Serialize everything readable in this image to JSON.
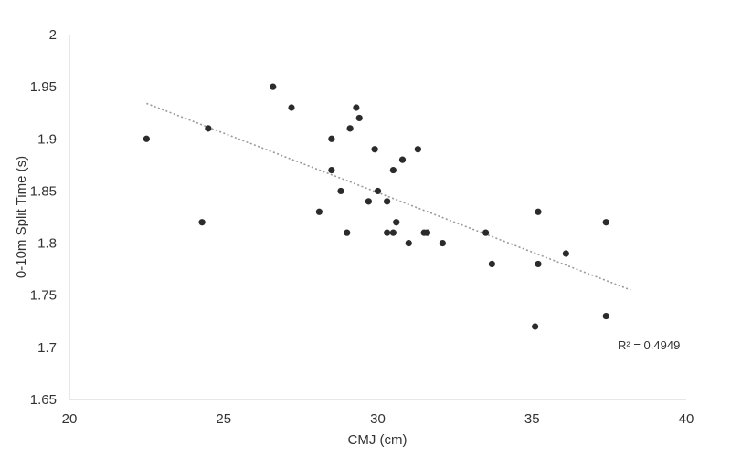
{
  "chart_data": {
    "type": "scatter",
    "title": "",
    "xlabel": "CMJ (cm)",
    "ylabel": "0-10m Split Time (s)",
    "xlim": [
      20,
      40
    ],
    "ylim": [
      1.65,
      2
    ],
    "xticks": [
      20,
      25,
      30,
      35,
      40
    ],
    "yticks": [
      1.65,
      1.7,
      1.75,
      1.8,
      1.85,
      1.9,
      1.95,
      2
    ],
    "xtick_labels": [
      "20",
      "25",
      "30",
      "35",
      "40"
    ],
    "ytick_labels": [
      "1.65",
      "1.7",
      "1.75",
      "1.8",
      "1.85",
      "1.9",
      "1.95",
      "2"
    ],
    "grid": false,
    "points": [
      {
        "x": 22.5,
        "y": 1.9
      },
      {
        "x": 24.3,
        "y": 1.82
      },
      {
        "x": 24.5,
        "y": 1.91
      },
      {
        "x": 26.6,
        "y": 1.95
      },
      {
        "x": 27.2,
        "y": 1.93
      },
      {
        "x": 28.1,
        "y": 1.83
      },
      {
        "x": 28.5,
        "y": 1.9
      },
      {
        "x": 28.5,
        "y": 1.87
      },
      {
        "x": 28.8,
        "y": 1.85
      },
      {
        "x": 29.0,
        "y": 1.81
      },
      {
        "x": 29.1,
        "y": 1.91
      },
      {
        "x": 29.3,
        "y": 1.93
      },
      {
        "x": 29.4,
        "y": 1.92
      },
      {
        "x": 29.7,
        "y": 1.84
      },
      {
        "x": 29.9,
        "y": 1.89
      },
      {
        "x": 30.0,
        "y": 1.85
      },
      {
        "x": 30.3,
        "y": 1.84
      },
      {
        "x": 30.3,
        "y": 1.81
      },
      {
        "x": 30.5,
        "y": 1.87
      },
      {
        "x": 30.5,
        "y": 1.81
      },
      {
        "x": 30.6,
        "y": 1.82
      },
      {
        "x": 30.8,
        "y": 1.88
      },
      {
        "x": 31.0,
        "y": 1.8
      },
      {
        "x": 31.3,
        "y": 1.89
      },
      {
        "x": 31.5,
        "y": 1.81
      },
      {
        "x": 31.6,
        "y": 1.81
      },
      {
        "x": 32.1,
        "y": 1.8
      },
      {
        "x": 33.5,
        "y": 1.81
      },
      {
        "x": 33.7,
        "y": 1.78
      },
      {
        "x": 35.1,
        "y": 1.72
      },
      {
        "x": 35.2,
        "y": 1.83
      },
      {
        "x": 35.2,
        "y": 1.78
      },
      {
        "x": 36.1,
        "y": 1.79
      },
      {
        "x": 37.4,
        "y": 1.82
      },
      {
        "x": 37.4,
        "y": 1.73
      }
    ],
    "trendline": {
      "x1": 22.5,
      "y1": 1.934,
      "x2": 38.2,
      "y2": 1.755,
      "style": "dotted"
    },
    "annotation": "R² = 0.4949"
  }
}
